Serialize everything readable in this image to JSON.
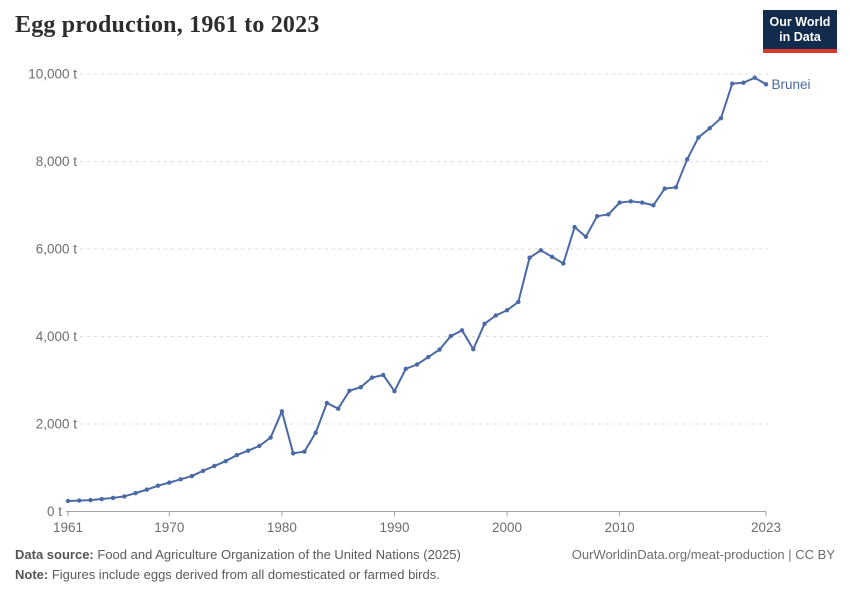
{
  "header": {
    "title": "Egg production, 1961 to 2023",
    "logo": {
      "line1": "Our World",
      "line2": "in Data"
    }
  },
  "chart_data": {
    "type": "line",
    "title": "Egg production, 1961 to 2023",
    "unit": "t",
    "xlim": [
      1961,
      2023
    ],
    "ylim": [
      0,
      10000
    ],
    "grid": "horizontal-dashed",
    "legend_position": "end-of-line-label",
    "x_ticks": [
      1961,
      1970,
      1980,
      1990,
      2000,
      2010,
      2023
    ],
    "y_ticks": [
      {
        "value": 0,
        "label": "0 t"
      },
      {
        "value": 2000,
        "label": "2,000 t"
      },
      {
        "value": 4000,
        "label": "4,000 t"
      },
      {
        "value": 6000,
        "label": "6,000 t"
      },
      {
        "value": 8000,
        "label": "8,000 t"
      },
      {
        "value": 10000,
        "label": "10,000 t"
      }
    ],
    "series": [
      {
        "name": "Brunei",
        "color": "#4A69A5",
        "x": [
          1961,
          1962,
          1963,
          1964,
          1965,
          1966,
          1967,
          1968,
          1969,
          1970,
          1971,
          1972,
          1973,
          1974,
          1975,
          1976,
          1977,
          1978,
          1979,
          1980,
          1981,
          1982,
          1983,
          1984,
          1985,
          1986,
          1987,
          1988,
          1989,
          1990,
          1991,
          1992,
          1993,
          1994,
          1995,
          1996,
          1997,
          1998,
          1999,
          2000,
          2001,
          2002,
          2003,
          2004,
          2005,
          2006,
          2007,
          2008,
          2009,
          2010,
          2011,
          2012,
          2013,
          2014,
          2015,
          2016,
          2017,
          2018,
          2019,
          2020,
          2021,
          2022,
          2023
        ],
        "values": [
          240,
          250,
          260,
          285,
          310,
          345,
          420,
          500,
          590,
          660,
          735,
          810,
          930,
          1040,
          1150,
          1290,
          1390,
          1500,
          1690,
          2290,
          1330,
          1370,
          1800,
          2480,
          2350,
          2760,
          2840,
          3060,
          3120,
          2750,
          3260,
          3360,
          3530,
          3700,
          4010,
          4140,
          3710,
          4290,
          4480,
          4600,
          4790,
          5800,
          5970,
          5820,
          5670,
          6500,
          6280,
          6750,
          6790,
          7060,
          7090,
          7060,
          7000,
          7380,
          7410,
          8050,
          8550,
          8760,
          8990,
          9780,
          9800,
          9915,
          9765
        ]
      }
    ]
  },
  "footer": {
    "datasource_label": "Data source:",
    "datasource_text": "Food and Agriculture Organization of the United Nations (2025)",
    "note_label": "Note:",
    "note_text": "Figures include eggs derived from all domesticated or farmed birds.",
    "credit": "OurWorldinData.org/meat-production | CC BY"
  },
  "colors": {
    "line": "#4A69A5",
    "gridline": "#dcdcdc",
    "axis": "#a5a5a5",
    "tick_label": "#6e6e6e",
    "title": "#2d2d2d",
    "footer_text": "#5b5b5b",
    "logo_background": "#132c4d",
    "logo_bar": "#d73a2d",
    "logo_text": "#ffffff",
    "background": "#ffffff"
  }
}
